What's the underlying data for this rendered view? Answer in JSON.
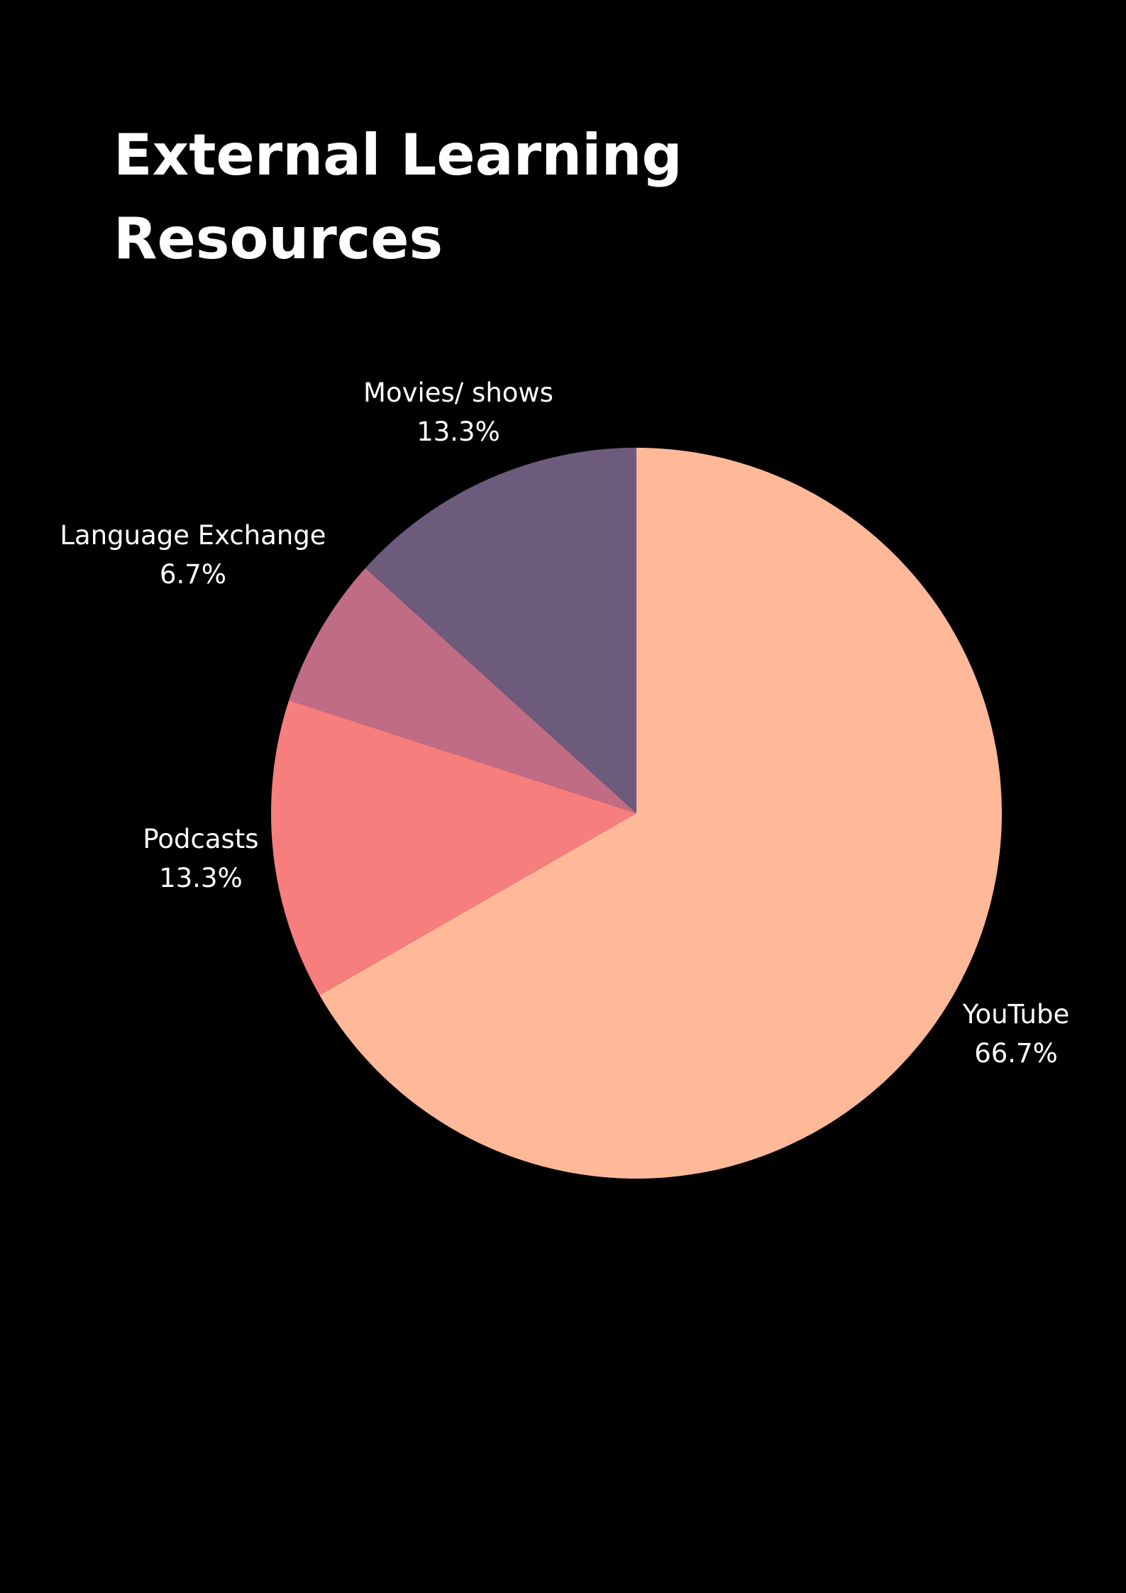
{
  "title_lines": [
    "External Learning",
    "Resources"
  ],
  "chart_data": {
    "type": "pie",
    "title": "External Learning Resources",
    "start_angle": "12 o'clock",
    "direction": "clockwise",
    "legend": "none",
    "slices": [
      {
        "name": "YouTube",
        "value": 66.7,
        "label": "66.7%",
        "color": "#FFB999"
      },
      {
        "name": "Podcasts",
        "value": 13.3,
        "label": "13.3%",
        "color": "#F67E7D"
      },
      {
        "name": "Language Exchange",
        "value": 6.7,
        "label": "6.7%",
        "color": "#C06C84"
      },
      {
        "name": "Movies/ shows",
        "value": 13.3,
        "label": "13.3%",
        "color": "#6C5B7B"
      }
    ]
  }
}
